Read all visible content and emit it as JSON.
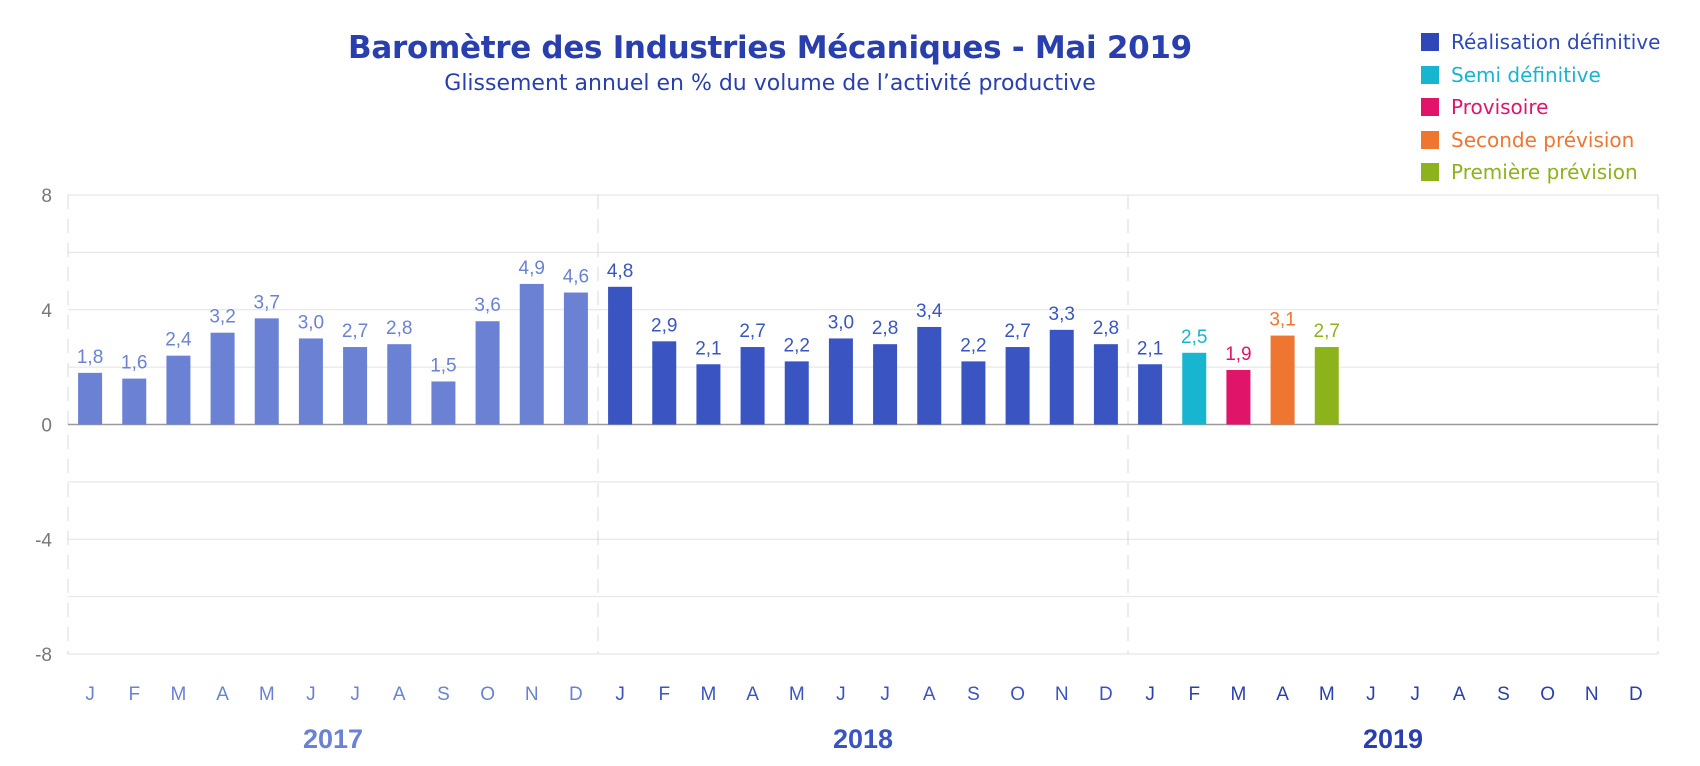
{
  "title": "Baromètre des Industries Mécaniques - Mai 2019",
  "subtitle": "Glissement annuel en % du volume de l’activité productive",
  "legend": [
    {
      "label": "Réalisation définitive",
      "color": "#3a55c2"
    },
    {
      "label": "Semi définitive",
      "color": "#17b5d0"
    },
    {
      "label": "Provisoire",
      "color": "#e0156a"
    },
    {
      "label": "Seconde prévision",
      "color": "#ef7630"
    },
    {
      "label": "Première prévision",
      "color": "#8cb31b"
    }
  ],
  "chart_data": {
    "type": "bar",
    "title": "Baromètre des Industries Mécaniques - Mai 2019",
    "subtitle": "Glissement annuel en % du volume de l’activité productive",
    "ylim": [
      -8,
      8
    ],
    "yticks": [
      8,
      4,
      0,
      -4,
      -8
    ],
    "ytick_labels": [
      "8",
      "4",
      "0",
      "-4",
      "-8"
    ],
    "grid": true,
    "legend_position": "top-right",
    "years": [
      {
        "label": "2017",
        "color": "#6b82d4"
      },
      {
        "label": "2018",
        "color": "#3a55c2"
      },
      {
        "label": "2019",
        "color": "#2a3fae"
      }
    ],
    "categories": [
      "J",
      "F",
      "M",
      "A",
      "M",
      "J",
      "J",
      "A",
      "S",
      "O",
      "N",
      "D",
      "J",
      "F",
      "M",
      "A",
      "M",
      "J",
      "J",
      "A",
      "S",
      "O",
      "N",
      "D",
      "J",
      "F",
      "M",
      "A",
      "M",
      "J",
      "J",
      "A",
      "S",
      "O",
      "N",
      "D"
    ],
    "values": [
      1.8,
      1.6,
      2.4,
      3.2,
      3.7,
      3.0,
      2.7,
      2.8,
      1.5,
      3.6,
      4.9,
      4.6,
      4.8,
      2.9,
      2.1,
      2.7,
      2.2,
      3.0,
      2.8,
      3.4,
      2.2,
      2.7,
      3.3,
      2.8,
      2.1,
      2.5,
      1.9,
      3.1,
      2.7,
      null,
      null,
      null,
      null,
      null,
      null,
      null
    ],
    "labels": [
      "1,8",
      "1,6",
      "2,4",
      "3,2",
      "3,7",
      "3,0",
      "2,7",
      "2,8",
      "1,5",
      "3,6",
      "4,9",
      "4,6",
      "4,8",
      "2,9",
      "2,1",
      "2,7",
      "2,2",
      "3,0",
      "2,8",
      "3,4",
      "2,2",
      "2,7",
      "3,3",
      "2,8",
      "2,1",
      "2,5",
      "1,9",
      "3,1",
      "2,7",
      "",
      "",
      "",
      "",
      "",
      "",
      ""
    ],
    "status": [
      "2017",
      "2017",
      "2017",
      "2017",
      "2017",
      "2017",
      "2017",
      "2017",
      "2017",
      "2017",
      "2017",
      "2017",
      "Réalisation définitive",
      "Réalisation définitive",
      "Réalisation définitive",
      "Réalisation définitive",
      "Réalisation définitive",
      "Réalisation définitive",
      "Réalisation définitive",
      "Réalisation définitive",
      "Réalisation définitive",
      "Réalisation définitive",
      "Réalisation définitive",
      "Réalisation définitive",
      "Réalisation définitive",
      "Semi définitive",
      "Provisoire",
      "Seconde prévision",
      "Première prévision",
      "",
      "",
      "",
      "",
      "",
      "",
      ""
    ],
    "colors": {
      "2017": "#6b82d4",
      "Réalisation définitive": "#3a55c2",
      "Semi définitive": "#17b5d0",
      "Provisoire": "#e0156a",
      "Seconde prévision": "#ef7630",
      "Première prévision": "#8cb31b"
    }
  }
}
